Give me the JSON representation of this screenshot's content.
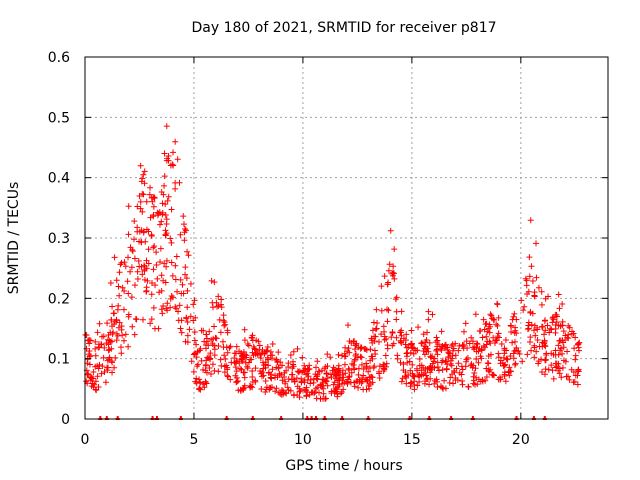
{
  "chart_data": {
    "type": "scatter",
    "title": "Day 180 of 2021, SRMTID for receiver p817",
    "xlabel": "GPS time / hours",
    "ylabel": "SRMTID / TECUs",
    "xlim": [
      0,
      24
    ],
    "ylim": [
      0,
      0.6
    ],
    "x_ticks": [
      0,
      5,
      10,
      15,
      20
    ],
    "x_tick_labels": [
      "0",
      "5",
      "10",
      "15",
      "20"
    ],
    "y_ticks": [
      0,
      0.1,
      0.2,
      0.3,
      0.4,
      0.5,
      0.6
    ],
    "y_tick_labels": [
      "0",
      "0.1",
      "0.2",
      "0.3",
      "0.4",
      "0.5",
      "0.6"
    ],
    "grid": true,
    "marker": "plus",
    "color": "#ff0000",
    "series": [
      {
        "name": "SRMTID",
        "description": "approximate trend of the dense point cloud (hour, TECU)",
        "x": [
          0.0,
          0.3,
          0.6,
          0.9,
          1.2,
          1.5,
          1.8,
          2.1,
          2.4,
          2.7,
          3.0,
          3.3,
          3.6,
          3.9,
          4.2,
          4.5,
          4.8,
          5.1,
          5.4,
          5.7,
          6.0,
          6.3,
          6.6,
          6.9,
          7.2,
          7.5,
          7.8,
          8.1,
          8.4,
          8.7,
          9.0,
          9.3,
          9.6,
          9.9,
          10.2,
          10.5,
          10.8,
          11.1,
          11.4,
          11.7,
          12.0,
          12.3,
          12.6,
          12.9,
          13.2,
          13.5,
          13.8,
          14.1,
          14.4,
          14.7,
          15.0,
          15.3,
          15.6,
          15.9,
          16.2,
          16.5,
          16.8,
          17.1,
          17.4,
          17.7,
          18.0,
          18.3,
          18.6,
          18.9,
          19.2,
          19.5,
          19.8,
          20.1,
          20.4,
          20.7,
          21.0,
          21.3,
          21.6,
          21.9,
          22.2,
          22.5,
          22.7
        ],
        "y": [
          0.1,
          0.09,
          0.085,
          0.1,
          0.13,
          0.17,
          0.19,
          0.2,
          0.25,
          0.3,
          0.28,
          0.24,
          0.27,
          0.33,
          0.31,
          0.24,
          0.19,
          0.09,
          0.08,
          0.12,
          0.15,
          0.13,
          0.1,
          0.09,
          0.08,
          0.09,
          0.1,
          0.08,
          0.08,
          0.07,
          0.065,
          0.07,
          0.07,
          0.06,
          0.06,
          0.055,
          0.055,
          0.06,
          0.06,
          0.065,
          0.1,
          0.09,
          0.085,
          0.08,
          0.1,
          0.12,
          0.15,
          0.2,
          0.12,
          0.1,
          0.09,
          0.085,
          0.1,
          0.1,
          0.09,
          0.09,
          0.085,
          0.09,
          0.1,
          0.09,
          0.1,
          0.11,
          0.12,
          0.11,
          0.1,
          0.11,
          0.13,
          0.16,
          0.2,
          0.17,
          0.13,
          0.12,
          0.12,
          0.12,
          0.11,
          0.1,
          0.09
        ]
      }
    ],
    "zero_markers_x": [
      0.7,
      1.0,
      1.5,
      3.1,
      3.3,
      4.4,
      6.5,
      7.7,
      9.0,
      10.2,
      10.4,
      10.6,
      11.0,
      11.8,
      13.0,
      14.9,
      15.8,
      16.8,
      17.8,
      19.8,
      20.6,
      21.1
    ]
  }
}
